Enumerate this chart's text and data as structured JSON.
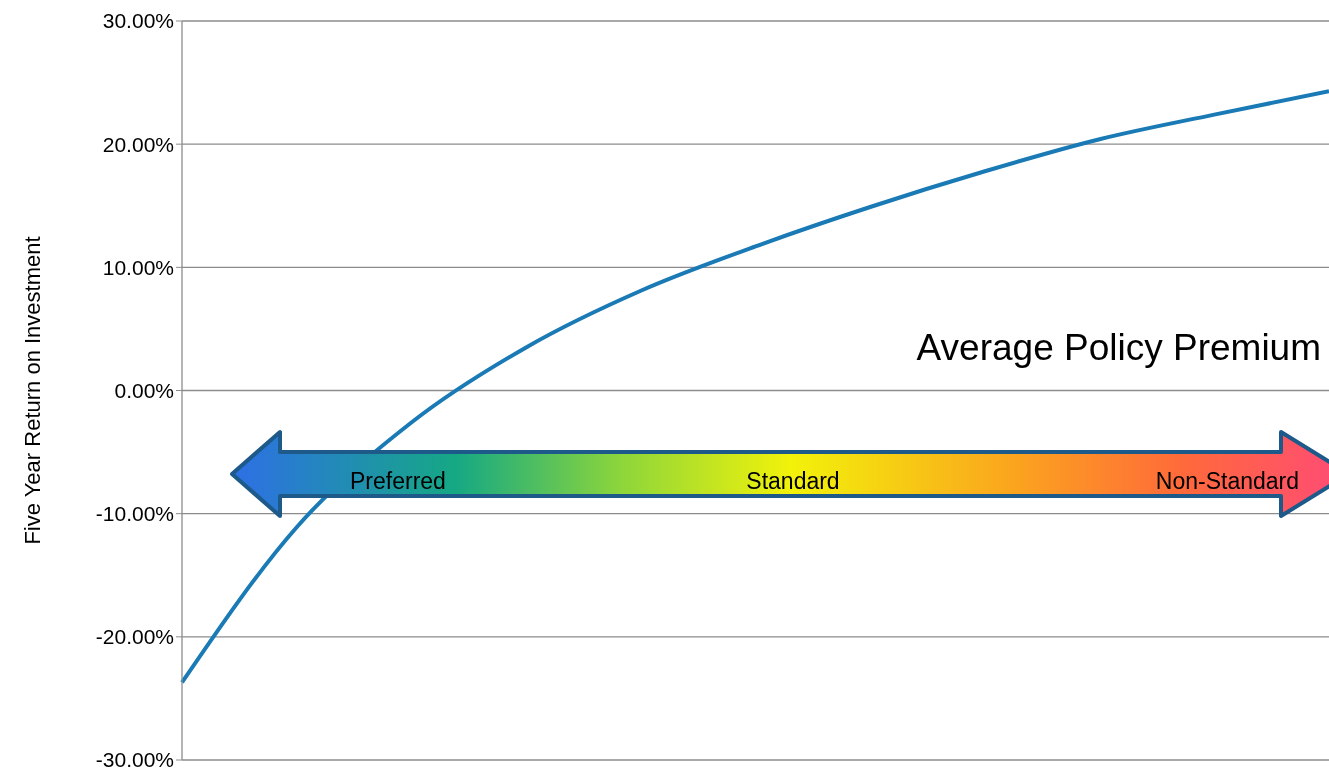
{
  "chart_data": {
    "type": "line",
    "ylabel": "Five Year Return on Investment",
    "categories": [
      null,
      null,
      null,
      null,
      null,
      null,
      null,
      null,
      null,
      null,
      null
    ],
    "series": [
      {
        "color": "#1a7ab5",
        "values": [
          -23.7,
          -11.1,
          -2.6,
          3.5,
          8.1,
          11.7,
          14.9,
          17.8,
          20.4,
          22.4,
          24.3
        ]
      }
    ],
    "ylim": [
      -30,
      30
    ],
    "yticks": [
      {
        "value": -30,
        "label": "-30.00%"
      },
      {
        "value": -20,
        "label": "-20.00%"
      },
      {
        "value": -10,
        "label": "-10.00%"
      },
      {
        "value": 0,
        "label": "0.00%"
      },
      {
        "value": 10,
        "label": "10.00%"
      },
      {
        "value": 20,
        "label": "20.00%"
      },
      {
        "value": 30,
        "label": "30.00%"
      }
    ],
    "grid": "y",
    "annotations": [
      "Average Policy Premium",
      "Preferred",
      "Standard",
      "Non-Standard"
    ]
  }
}
